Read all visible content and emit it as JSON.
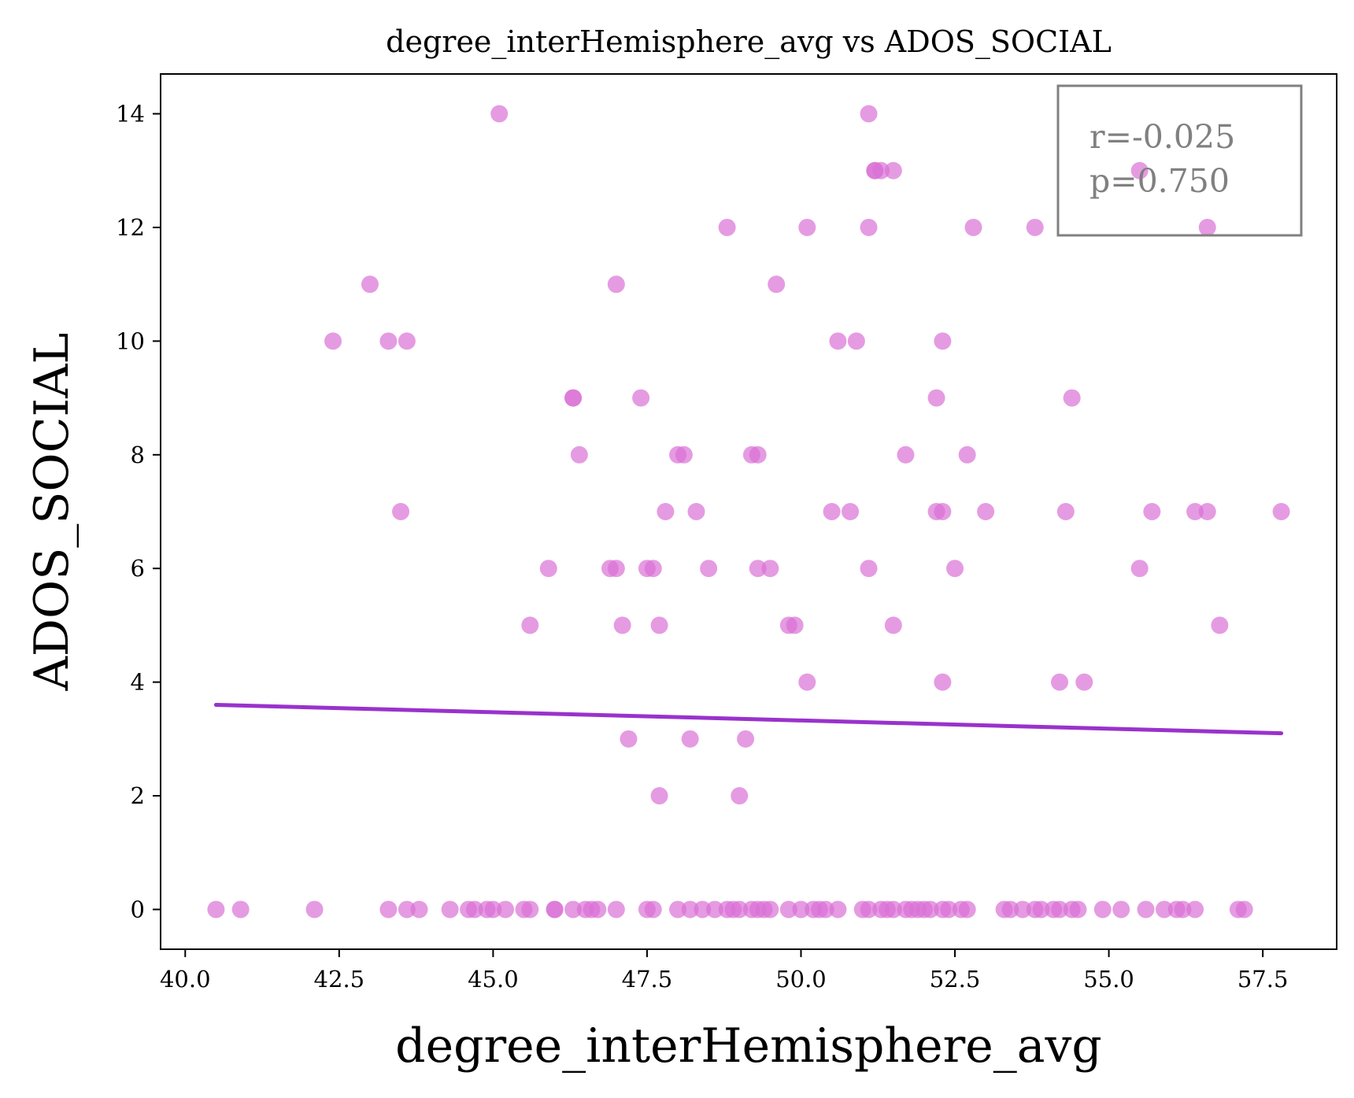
{
  "chart_data": {
    "type": "scatter",
    "title": "degree_interHemisphere_avg vs ADOS_SOCIAL",
    "xlabel": "degree_interHemisphere_avg",
    "ylabel": "ADOS_SOCIAL",
    "xlim": [
      39.6,
      58.7
    ],
    "ylim": [
      -0.7,
      14.7
    ],
    "xticks": [
      "40.0",
      "42.5",
      "45.0",
      "47.5",
      "50.0",
      "52.5",
      "55.0",
      "57.5"
    ],
    "yticks": [
      "0",
      "2",
      "4",
      "6",
      "8",
      "10",
      "12",
      "14"
    ],
    "grid": false,
    "point_color": "#da70d6",
    "fit_color": "#9932cc",
    "fit_line": {
      "x": [
        40.5,
        57.8
      ],
      "y": [
        3.6,
        3.1
      ]
    },
    "stats": {
      "r": "r=-0.025",
      "p": "p=0.750",
      "placement": "top-right"
    },
    "points": [
      [
        45.1,
        14
      ],
      [
        51.1,
        14
      ],
      [
        51.2,
        13
      ],
      [
        51.2,
        13
      ],
      [
        51.3,
        13
      ],
      [
        51.5,
        13
      ],
      [
        55.5,
        13
      ],
      [
        48.8,
        12
      ],
      [
        50.1,
        12
      ],
      [
        51.1,
        12
      ],
      [
        52.8,
        12
      ],
      [
        53.8,
        12
      ],
      [
        56.6,
        12
      ],
      [
        43.0,
        11
      ],
      [
        47.0,
        11
      ],
      [
        49.6,
        11
      ],
      [
        42.4,
        10
      ],
      [
        43.3,
        10
      ],
      [
        43.6,
        10
      ],
      [
        50.6,
        10
      ],
      [
        50.9,
        10
      ],
      [
        52.3,
        10
      ],
      [
        46.3,
        9
      ],
      [
        46.3,
        9
      ],
      [
        47.4,
        9
      ],
      [
        52.2,
        9
      ],
      [
        54.4,
        9
      ],
      [
        46.4,
        8
      ],
      [
        48.0,
        8
      ],
      [
        48.1,
        8
      ],
      [
        49.2,
        8
      ],
      [
        49.3,
        8
      ],
      [
        51.7,
        8
      ],
      [
        52.7,
        8
      ],
      [
        43.5,
        7
      ],
      [
        47.8,
        7
      ],
      [
        48.3,
        7
      ],
      [
        50.5,
        7
      ],
      [
        50.8,
        7
      ],
      [
        52.2,
        7
      ],
      [
        52.3,
        7
      ],
      [
        53.0,
        7
      ],
      [
        54.3,
        7
      ],
      [
        55.7,
        7
      ],
      [
        56.4,
        7
      ],
      [
        56.6,
        7
      ],
      [
        57.8,
        7
      ],
      [
        45.9,
        6
      ],
      [
        46.9,
        6
      ],
      [
        47.0,
        6
      ],
      [
        47.5,
        6
      ],
      [
        47.6,
        6
      ],
      [
        48.5,
        6
      ],
      [
        49.3,
        6
      ],
      [
        49.5,
        6
      ],
      [
        51.1,
        6
      ],
      [
        52.5,
        6
      ],
      [
        55.5,
        6
      ],
      [
        45.6,
        5
      ],
      [
        47.1,
        5
      ],
      [
        47.7,
        5
      ],
      [
        49.8,
        5
      ],
      [
        49.9,
        5
      ],
      [
        51.5,
        5
      ],
      [
        56.8,
        5
      ],
      [
        50.1,
        4
      ],
      [
        52.3,
        4
      ],
      [
        54.2,
        4
      ],
      [
        54.6,
        4
      ],
      [
        47.2,
        3
      ],
      [
        48.2,
        3
      ],
      [
        49.1,
        3
      ],
      [
        47.7,
        2
      ],
      [
        49.0,
        2
      ],
      [
        40.5,
        0
      ],
      [
        40.9,
        0
      ],
      [
        42.1,
        0
      ],
      [
        43.3,
        0
      ],
      [
        43.6,
        0
      ],
      [
        43.8,
        0
      ],
      [
        44.3,
        0
      ],
      [
        44.6,
        0
      ],
      [
        44.7,
        0
      ],
      [
        44.9,
        0
      ],
      [
        45.0,
        0
      ],
      [
        45.2,
        0
      ],
      [
        45.5,
        0
      ],
      [
        45.6,
        0
      ],
      [
        46.0,
        0
      ],
      [
        46.0,
        0
      ],
      [
        46.3,
        0
      ],
      [
        46.5,
        0
      ],
      [
        46.6,
        0
      ],
      [
        46.7,
        0
      ],
      [
        47.0,
        0
      ],
      [
        47.5,
        0
      ],
      [
        47.6,
        0
      ],
      [
        48.0,
        0
      ],
      [
        48.2,
        0
      ],
      [
        48.4,
        0
      ],
      [
        48.6,
        0
      ],
      [
        48.8,
        0
      ],
      [
        48.9,
        0
      ],
      [
        49.0,
        0
      ],
      [
        49.2,
        0
      ],
      [
        49.3,
        0
      ],
      [
        49.4,
        0
      ],
      [
        49.5,
        0
      ],
      [
        49.8,
        0
      ],
      [
        50.0,
        0
      ],
      [
        50.2,
        0
      ],
      [
        50.3,
        0
      ],
      [
        50.4,
        0
      ],
      [
        50.6,
        0
      ],
      [
        51.0,
        0
      ],
      [
        51.1,
        0
      ],
      [
        51.3,
        0
      ],
      [
        51.4,
        0
      ],
      [
        51.5,
        0
      ],
      [
        51.7,
        0
      ],
      [
        51.8,
        0
      ],
      [
        51.9,
        0
      ],
      [
        52.0,
        0
      ],
      [
        52.1,
        0
      ],
      [
        52.3,
        0
      ],
      [
        52.4,
        0
      ],
      [
        52.6,
        0
      ],
      [
        52.7,
        0
      ],
      [
        53.3,
        0
      ],
      [
        53.4,
        0
      ],
      [
        53.6,
        0
      ],
      [
        53.8,
        0
      ],
      [
        53.9,
        0
      ],
      [
        54.1,
        0
      ],
      [
        54.2,
        0
      ],
      [
        54.4,
        0
      ],
      [
        54.5,
        0
      ],
      [
        54.9,
        0
      ],
      [
        55.2,
        0
      ],
      [
        55.6,
        0
      ],
      [
        55.9,
        0
      ],
      [
        56.1,
        0
      ],
      [
        56.2,
        0
      ],
      [
        56.4,
        0
      ],
      [
        57.1,
        0
      ],
      [
        57.2,
        0
      ]
    ]
  }
}
